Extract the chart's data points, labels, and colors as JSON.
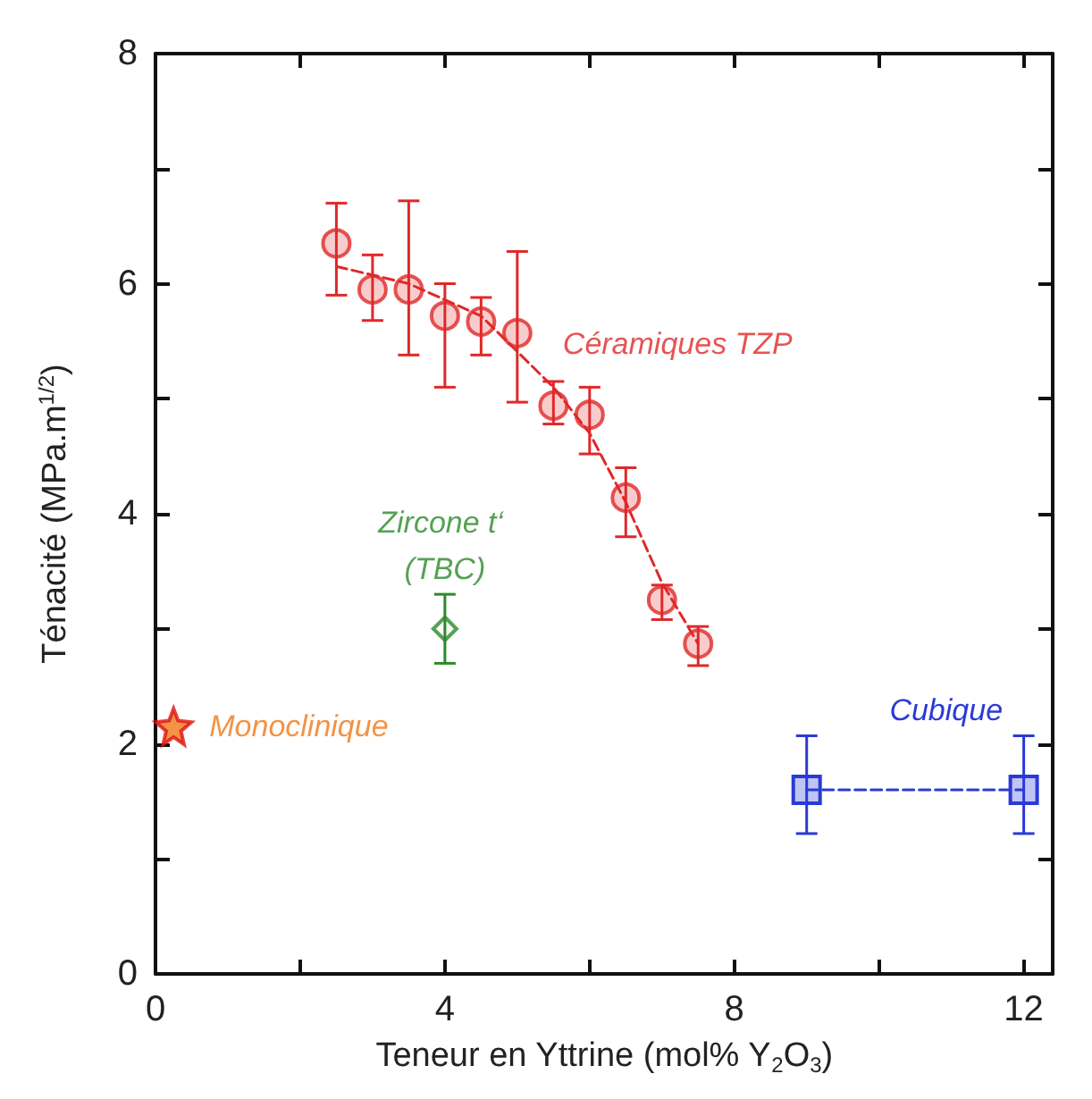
{
  "chart_data": {
    "type": "scatter",
    "xlabel": "Teneur en Yttrine (mol% Y$_{2}$O$_{3}$)",
    "ylabel": "Ténacité (MPa.m$^{1/2}$)",
    "xlim": [
      0,
      12.4
    ],
    "xticks": [
      0,
      {
        "value": 2,
        "label": null
      },
      4,
      {
        "value": 6,
        "label": null
      },
      8,
      {
        "value": 10,
        "label": null
      },
      12
    ],
    "ylim": [
      0,
      8
    ],
    "yticks": [
      0,
      {
        "value": 1,
        "label": null
      },
      2,
      {
        "value": 3,
        "label": null
      },
      4,
      {
        "value": 5,
        "label": null
      },
      6,
      {
        "value": 7,
        "label": null
      },
      8
    ],
    "grid": false,
    "series": [
      {
        "name": "Céramiques TZP",
        "type": "scatter",
        "color": "#e02828",
        "marker": "circle",
        "x": [
          2.5,
          3,
          3.5,
          4,
          4.5,
          5,
          5.5,
          6,
          6.5,
          7,
          7.5
        ],
        "values": [
          6.35,
          5.95,
          5.95,
          5.72,
          5.67,
          5.57,
          4.94,
          4.86,
          4.14,
          3.25,
          2.87
        ],
        "errors": [
          [
            5.9,
            6.7
          ],
          [
            5.68,
            6.25
          ],
          [
            5.38,
            6.72
          ],
          [
            5.1,
            6.0
          ],
          [
            5.38,
            5.88
          ],
          [
            4.97,
            6.28
          ],
          [
            4.78,
            5.15
          ],
          [
            4.52,
            5.1
          ],
          [
            3.8,
            4.4
          ],
          [
            3.08,
            3.38
          ],
          [
            2.68,
            3.02
          ]
        ]
      },
      {
        "type": "line",
        "color": "#e02828",
        "marker": "none",
        "line_style": "dashed",
        "x": [
          2.5,
          3.5,
          4.5,
          5.5,
          6,
          6.5,
          7,
          7.5
        ],
        "values": [
          6.15,
          6.0,
          5.72,
          5.1,
          4.7,
          4.1,
          3.4,
          2.87
        ]
      },
      {
        "name": "Zircone t‘ (TBC)",
        "color": "#2a8a2a",
        "marker": "diamond",
        "x": [
          4
        ],
        "values": [
          3.0
        ],
        "errors": [
          [
            2.7,
            3.3
          ]
        ]
      },
      {
        "name": "Monoclinique",
        "color": "#f07818",
        "marker": "star",
        "x": [
          0.25
        ],
        "values": [
          2.15
        ]
      },
      {
        "name": "Cubique",
        "type": "line",
        "color": "#2a3ad8",
        "marker": "square",
        "line_style": "dashed",
        "x": [
          9,
          12
        ],
        "values": [
          1.6,
          1.6
        ],
        "errors": [
          [
            1.22,
            2.07
          ],
          [
            1.22,
            2.07
          ]
        ]
      }
    ]
  }
}
